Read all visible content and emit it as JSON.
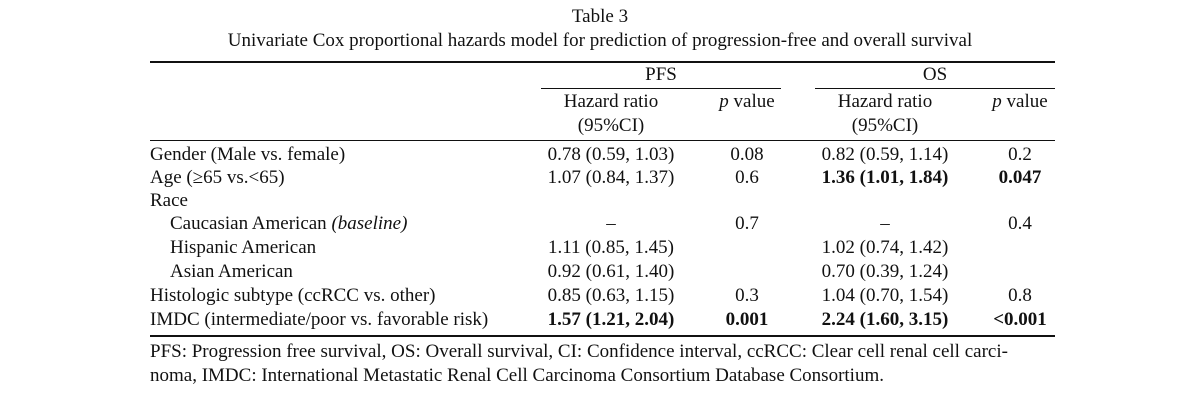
{
  "table": {
    "number": "Table 3",
    "caption": "Univariate Cox proportional hazards model for prediction of progression-free and overall survival",
    "groups": {
      "pfs": "PFS",
      "os": "OS"
    },
    "subheaders": {
      "hazard_ratio_line1": "Hazard ratio",
      "hazard_ratio_line2": "(95%CI)",
      "p_value_italic": "p",
      "p_value_rest": " value"
    },
    "rows": [
      {
        "label": "Gender (Male vs. female)",
        "pfs_hr": "0.78 (0.59, 1.03)",
        "pfs_p": "0.08",
        "os_hr": "0.82 (0.59, 1.14)",
        "os_p": "0.2"
      },
      {
        "label": "Age (≥65 vs.<65)",
        "pfs_hr": "1.07 (0.84, 1.37)",
        "pfs_p": "0.6",
        "os_hr": "1.36 (1.01, 1.84)",
        "os_p": "0.047"
      },
      {
        "label": "Race",
        "pfs_hr": "",
        "pfs_p": "",
        "os_hr": "",
        "os_p": ""
      },
      {
        "label_plain": "Caucasian American ",
        "label_italic": "(baseline)",
        "pfs_hr": "–",
        "pfs_p": "0.7",
        "os_hr": "–",
        "os_p": "0.4"
      },
      {
        "label": "Hispanic American",
        "pfs_hr": "1.11 (0.85, 1.45)",
        "pfs_p": "",
        "os_hr": "1.02 (0.74, 1.42)",
        "os_p": ""
      },
      {
        "label": "Asian American",
        "pfs_hr": "0.92 (0.61, 1.40)",
        "pfs_p": "",
        "os_hr": "0.70 (0.39, 1.24)",
        "os_p": ""
      },
      {
        "label": "Histologic subtype (ccRCC vs. other)",
        "pfs_hr": "0.85 (0.63, 1.15)",
        "pfs_p": "0.3",
        "os_hr": "1.04 (0.70, 1.54)",
        "os_p": "0.8"
      },
      {
        "label": "IMDC (intermediate/poor vs. favorable risk)",
        "pfs_hr": "1.57 (1.21, 2.04)",
        "pfs_p": "0.001",
        "os_hr": "2.24 (1.60, 3.15)",
        "os_p": "<0.001"
      }
    ],
    "footnote": "PFS: Progression free survival, OS: Overall survival, CI: Confidence interval, ccRCC: Clear cell renal cell carci-\nnoma, IMDC: International Metastatic Renal Cell Carcinoma Consortium Database Consortium."
  }
}
